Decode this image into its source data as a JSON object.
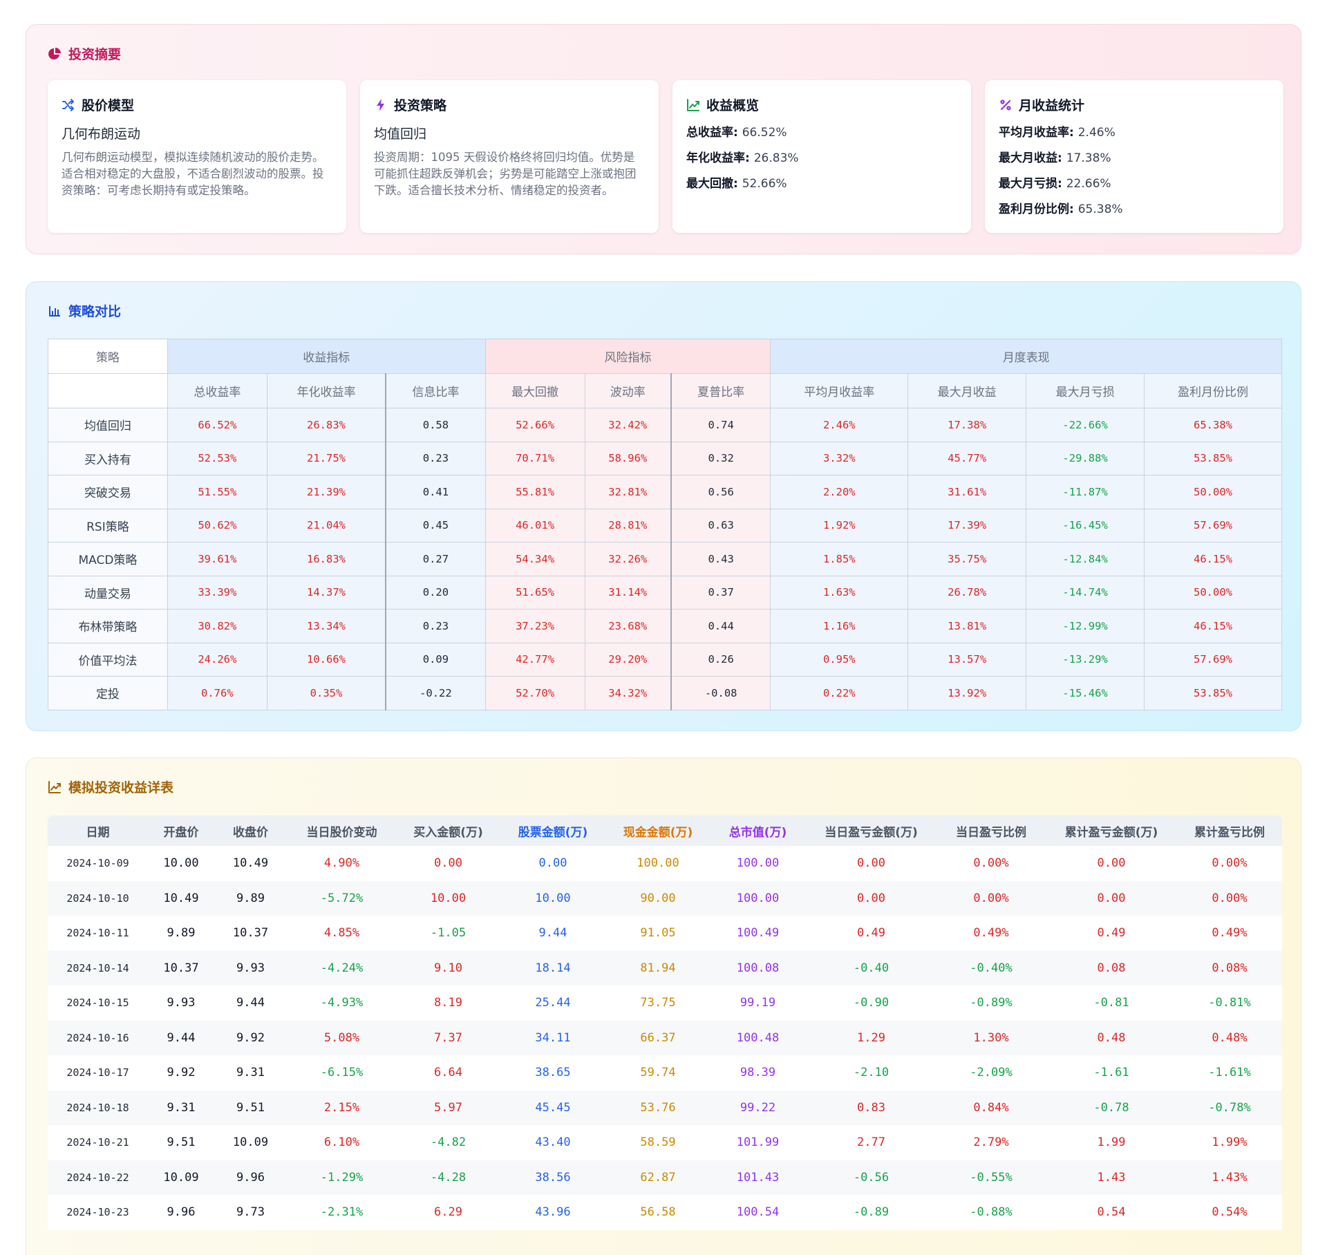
{
  "summary": {
    "title": "投资摘要",
    "cards": [
      {
        "title": "股价模型",
        "subtitle": "几何布朗运动",
        "desc": "几何布朗运动模型，模拟连续随机波动的股价走势。适合相对稳定的大盘股，不适合剧烈波动的股票。投资策略：可考虑长期持有或定投策略。"
      },
      {
        "title": "投资策略",
        "subtitle": "均值回归",
        "desc": "投资周期：1095 天假设价格终将回归均值。优势是可能抓住超跌反弹机会；劣势是可能踏空上涨或抱团下跌。适合擅长技术分析、情绪稳定的投资者。"
      }
    ],
    "returns": {
      "title": "收益概览",
      "items": [
        {
          "label": "总收益率",
          "value": "66.52%"
        },
        {
          "label": "年化收益率",
          "value": "26.83%"
        },
        {
          "label": "最大回撤",
          "value": "52.66%"
        }
      ]
    },
    "monthly": {
      "title": "月收益统计",
      "items": [
        {
          "label": "平均月收益率",
          "value": "2.46%"
        },
        {
          "label": "最大月收益",
          "value": "17.38%"
        },
        {
          "label": "最大月亏损",
          "value": "22.66%"
        },
        {
          "label": "盈利月份比例",
          "value": "65.38%"
        }
      ]
    }
  },
  "compare": {
    "title": "策略对比",
    "header_strategy": "策略",
    "groups": [
      "收益指标",
      "风险指标",
      "月度表现"
    ],
    "columns": [
      "总收益率",
      "年化收益率",
      "信息比率",
      "最大回撤",
      "波动率",
      "夏普比率",
      "平均月收益率",
      "最大月收益",
      "最大月亏损",
      "盈利月份比例"
    ],
    "rows": [
      {
        "name": "均值回归",
        "v": [
          "66.52%",
          "26.83%",
          "0.58",
          "52.66%",
          "32.42%",
          "0.74",
          "2.46%",
          "17.38%",
          "-22.66%",
          "65.38%"
        ]
      },
      {
        "name": "买入持有",
        "v": [
          "52.53%",
          "21.75%",
          "0.23",
          "70.71%",
          "58.96%",
          "0.32",
          "3.32%",
          "45.77%",
          "-29.88%",
          "53.85%"
        ]
      },
      {
        "name": "突破交易",
        "v": [
          "51.55%",
          "21.39%",
          "0.41",
          "55.81%",
          "32.81%",
          "0.56",
          "2.20%",
          "31.61%",
          "-11.87%",
          "50.00%"
        ]
      },
      {
        "name": "RSI策略",
        "v": [
          "50.62%",
          "21.04%",
          "0.45",
          "46.01%",
          "28.81%",
          "0.63",
          "1.92%",
          "17.39%",
          "-16.45%",
          "57.69%"
        ]
      },
      {
        "name": "MACD策略",
        "v": [
          "39.61%",
          "16.83%",
          "0.27",
          "54.34%",
          "32.26%",
          "0.43",
          "1.85%",
          "35.75%",
          "-12.84%",
          "46.15%"
        ]
      },
      {
        "name": "动量交易",
        "v": [
          "33.39%",
          "14.37%",
          "0.20",
          "51.65%",
          "31.14%",
          "0.37",
          "1.63%",
          "26.78%",
          "-14.74%",
          "50.00%"
        ]
      },
      {
        "name": "布林带策略",
        "v": [
          "30.82%",
          "13.34%",
          "0.23",
          "37.23%",
          "23.68%",
          "0.44",
          "1.16%",
          "13.81%",
          "-12.99%",
          "46.15%"
        ]
      },
      {
        "name": "价值平均法",
        "v": [
          "24.26%",
          "10.66%",
          "0.09",
          "42.77%",
          "29.20%",
          "0.26",
          "0.95%",
          "13.57%",
          "-13.29%",
          "57.69%"
        ]
      },
      {
        "name": "定投",
        "v": [
          "0.76%",
          "0.35%",
          "-0.22",
          "52.70%",
          "34.32%",
          "-0.08",
          "0.22%",
          "13.92%",
          "-15.46%",
          "53.85%"
        ]
      }
    ]
  },
  "detail": {
    "title": "模拟投资收益详表",
    "columns": [
      "日期",
      "开盘价",
      "收盘价",
      "当日股价变动",
      "买入金额(万)",
      "股票金额(万)",
      "现金金额(万)",
      "总市值(万)",
      "当日盈亏金额(万)",
      "当日盈亏比例",
      "累计盈亏金额(万)",
      "累计盈亏比例"
    ],
    "rows": [
      [
        "2024-10-09",
        "10.00",
        "10.49",
        "4.90%",
        "0.00",
        "0.00",
        "100.00",
        "100.00",
        "0.00",
        "0.00%",
        "0.00",
        "0.00%"
      ],
      [
        "2024-10-10",
        "10.49",
        "9.89",
        "-5.72%",
        "10.00",
        "10.00",
        "90.00",
        "100.00",
        "0.00",
        "0.00%",
        "0.00",
        "0.00%"
      ],
      [
        "2024-10-11",
        "9.89",
        "10.37",
        "4.85%",
        "-1.05",
        "9.44",
        "91.05",
        "100.49",
        "0.49",
        "0.49%",
        "0.49",
        "0.49%"
      ],
      [
        "2024-10-14",
        "10.37",
        "9.93",
        "-4.24%",
        "9.10",
        "18.14",
        "81.94",
        "100.08",
        "-0.40",
        "-0.40%",
        "0.08",
        "0.08%"
      ],
      [
        "2024-10-15",
        "9.93",
        "9.44",
        "-4.93%",
        "8.19",
        "25.44",
        "73.75",
        "99.19",
        "-0.90",
        "-0.89%",
        "-0.81",
        "-0.81%"
      ],
      [
        "2024-10-16",
        "9.44",
        "9.92",
        "5.08%",
        "7.37",
        "34.11",
        "66.37",
        "100.48",
        "1.29",
        "1.30%",
        "0.48",
        "0.48%"
      ],
      [
        "2024-10-17",
        "9.92",
        "9.31",
        "-6.15%",
        "6.64",
        "38.65",
        "59.74",
        "98.39",
        "-2.10",
        "-2.09%",
        "-1.61",
        "-1.61%"
      ],
      [
        "2024-10-18",
        "9.31",
        "9.51",
        "2.15%",
        "5.97",
        "45.45",
        "53.76",
        "99.22",
        "0.83",
        "0.84%",
        "-0.78",
        "-0.78%"
      ],
      [
        "2024-10-21",
        "9.51",
        "10.09",
        "6.10%",
        "-4.82",
        "43.40",
        "58.59",
        "101.99",
        "2.77",
        "2.79%",
        "1.99",
        "1.99%"
      ],
      [
        "2024-10-22",
        "10.09",
        "9.96",
        "-1.29%",
        "-4.28",
        "38.56",
        "62.87",
        "101.43",
        "-0.56",
        "-0.55%",
        "1.43",
        "1.43%"
      ],
      [
        "2024-10-23",
        "9.96",
        "9.73",
        "-2.31%",
        "6.29",
        "43.96",
        "56.58",
        "100.54",
        "-0.89",
        "-0.88%",
        "0.54",
        "0.54%"
      ]
    ]
  }
}
